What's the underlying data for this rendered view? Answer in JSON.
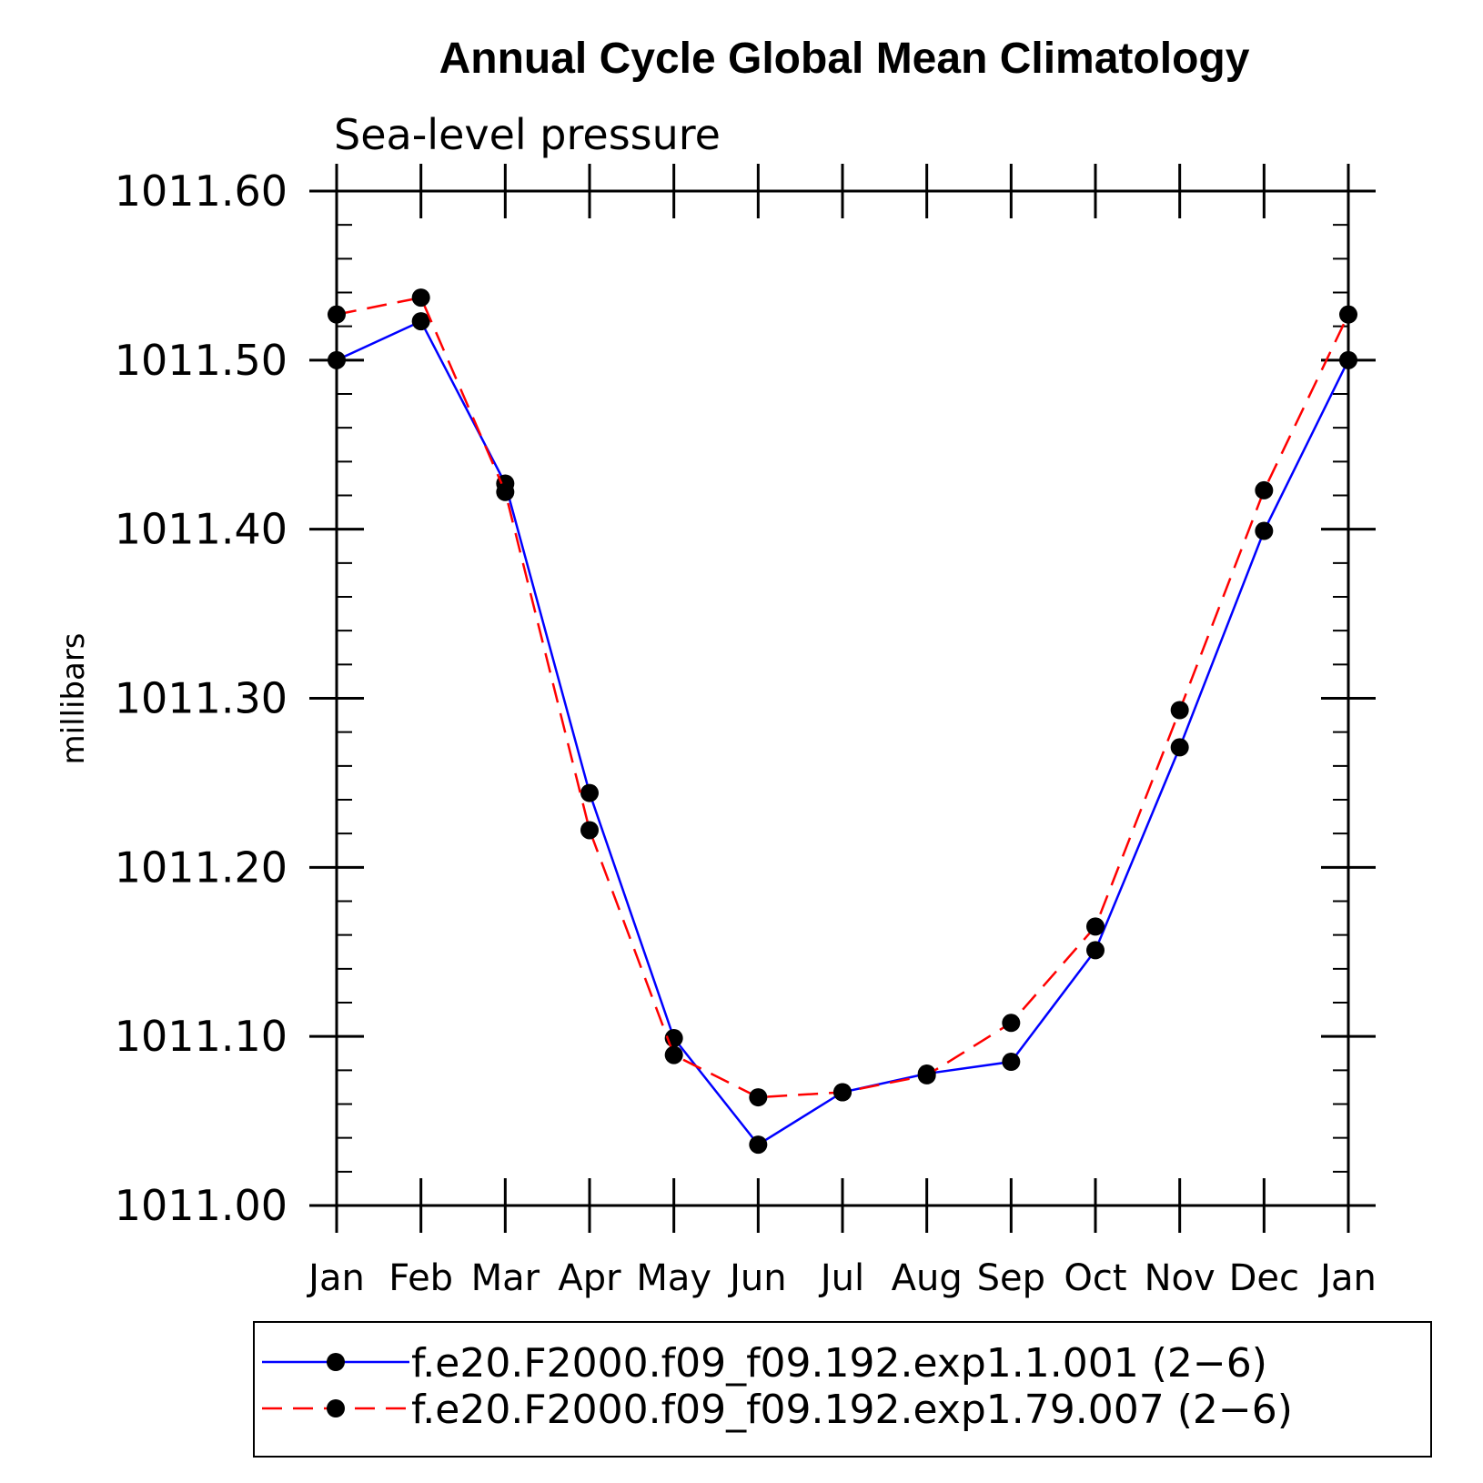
{
  "chart_data": {
    "type": "line",
    "title": "Annual Cycle Global Mean Climatology",
    "subtitle": "Sea-level pressure",
    "xlabel": "",
    "ylabel": "millibars",
    "categories": [
      "Jan",
      "Feb",
      "Mar",
      "Apr",
      "May",
      "Jun",
      "Jul",
      "Aug",
      "Sep",
      "Oct",
      "Nov",
      "Dec",
      "Jan"
    ],
    "ylim": [
      1011.0,
      1011.6
    ],
    "yticks": [
      "1011.00",
      "1011.10",
      "1011.20",
      "1011.30",
      "1011.40",
      "1011.50",
      "1011.60"
    ],
    "grid": false,
    "legend_position": "bottom",
    "series": [
      {
        "name": "f.e20.F2000.f09_f09.192.exp1.1.001 (2−6)",
        "color": "#0000ff",
        "dash": "solid",
        "marker": "filled-circle",
        "values": [
          1011.5,
          1011.523,
          1011.427,
          1011.244,
          1011.099,
          1011.036,
          1011.067,
          1011.078,
          1011.085,
          1011.151,
          1011.271,
          1011.399,
          1011.5
        ]
      },
      {
        "name": "f.e20.F2000.f09_f09.192.exp1.79.007 (2−6)",
        "color": "#ff0000",
        "dash": "dashed",
        "marker": "filled-circle",
        "values": [
          1011.527,
          1011.537,
          1011.422,
          1011.222,
          1011.089,
          1011.064,
          1011.067,
          1011.077,
          1011.108,
          1011.165,
          1011.293,
          1011.423,
          1011.527
        ]
      }
    ]
  }
}
